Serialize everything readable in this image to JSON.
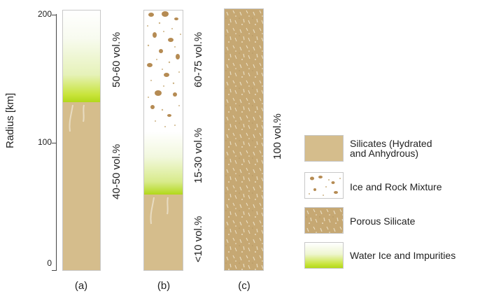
{
  "axis": {
    "label": "Radius [km]",
    "ticks": [
      {
        "value": 200,
        "label": "200"
      },
      {
        "value": 100,
        "label": "100"
      },
      {
        "value": 0,
        "label": "0"
      }
    ]
  },
  "columns": [
    {
      "id": "a",
      "label": "(a)",
      "layers": [
        {
          "material": "Silicates (Hydrated and Anhydrous)",
          "from_km": 0,
          "to_km": 135,
          "label": "40-50 vol.%"
        },
        {
          "material": "Water Ice and Impurities",
          "from_km": 135,
          "to_km": 200,
          "label": "50-60 vol.%"
        }
      ]
    },
    {
      "id": "b",
      "label": "(b)",
      "layers": [
        {
          "material": "Silicates (Hydrated and Anhydrous)",
          "from_km": 0,
          "to_km": 60,
          "label": "<10 vol.%"
        },
        {
          "material": "Water Ice and Impurities",
          "from_km": 60,
          "to_km": 112,
          "label": "15-30 vol.%"
        },
        {
          "material": "Ice and Rock Mixture",
          "from_km": 112,
          "to_km": 200,
          "label": "60-75 vol.%"
        }
      ]
    },
    {
      "id": "c",
      "label": "(c)",
      "layers": [
        {
          "material": "Porous Silicate",
          "from_km": 0,
          "to_km": 200,
          "label": "100 vol.%"
        }
      ]
    }
  ],
  "legend": [
    {
      "line1": "Silicates (Hydrated",
      "line2": "and Anhydrous)",
      "pattern": "silicate"
    },
    {
      "line1": "Ice and Rock Mixture",
      "line2": "",
      "pattern": "icerock"
    },
    {
      "line1": "Porous Silicate",
      "line2": "",
      "pattern": "porous"
    },
    {
      "line1": "Water Ice and Impurities",
      "line2": "",
      "pattern": "water"
    }
  ],
  "colors": {
    "silicate": "#d5bd8c",
    "porous": "#c6a873",
    "ice_green": "#b9dd1b",
    "rock_brown": "#b58b53"
  }
}
